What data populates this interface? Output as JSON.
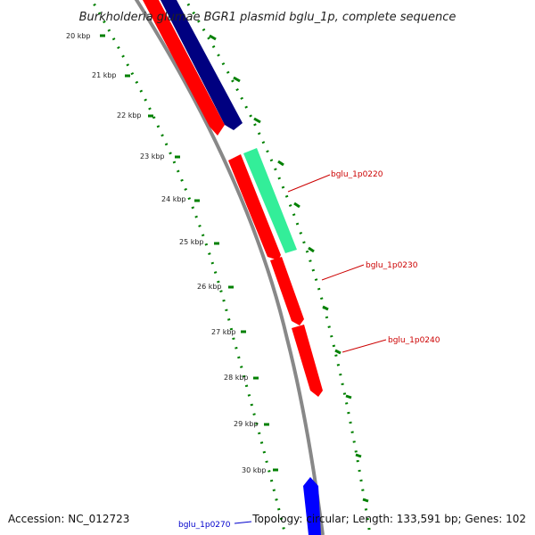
{
  "title": "Burkholderia glumae BGR1 plasmid bglu_1p, complete sequence",
  "accession": "Accession: NC_012723",
  "summary": "Topology: circular; Length: 133,591 bp; Genes: 102",
  "kbp_labels": [
    "20 kbp",
    "21 kbp",
    "22 kbp",
    "23 kbp",
    "24 kbp",
    "25 kbp",
    "26 kbp",
    "27 kbp",
    "28 kbp",
    "29 kbp",
    "30 kbp"
  ],
  "gene_labels": [
    {
      "name": "bglu_1p0220",
      "color": "#cc0000"
    },
    {
      "name": "bglu_1p0230",
      "color": "#cc0000"
    },
    {
      "name": "bglu_1p0240",
      "color": "#cc0000"
    },
    {
      "name": "bglu_1p0270",
      "color": "#0000cc"
    }
  ],
  "colors": {
    "backbone": "#888888",
    "gene_red": "#ff0000",
    "gene_navy": "#000080",
    "gene_green": "#33ee99",
    "gene_blue": "#0000ff",
    "ticks": "#008000"
  }
}
